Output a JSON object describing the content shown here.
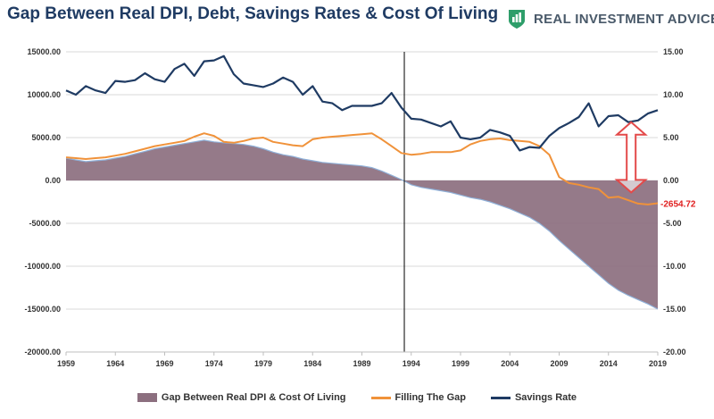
{
  "header": {
    "title": "Gap Between Real DPI, Debt, Savings Rates & Cost Of Living",
    "brand": "REAL INVESTMENT ADVICE",
    "brand_icon": "bar-chart-logo-icon"
  },
  "colors": {
    "gap_fill": "#8c6f7f",
    "gap_edge": "#8fb0d8",
    "filling_line": "#f0923a",
    "savings_line": "#1f3b63",
    "arrow": "#e34a4a",
    "last_label": "#e02020",
    "vline": "#000000",
    "grid": "#d9d9d9"
  },
  "chart_data": {
    "type": "area+line",
    "title": "Gap Between Real DPI, Debt, Savings Rates & Cost Of Living",
    "x_range": [
      1959,
      2019
    ],
    "x_ticks": [
      "1959",
      "1964",
      "1969",
      "1974",
      "1979",
      "1984",
      "1989",
      "1994",
      "1999",
      "2004",
      "2009",
      "2014",
      "2019"
    ],
    "y_left": {
      "range": [
        -20000,
        15000
      ],
      "ticks": [
        "15000.00",
        "10000.00",
        "5000.00",
        "0.00",
        "-5000.00",
        "-10000.00",
        "-15000.00",
        "-20000.00"
      ]
    },
    "y_right": {
      "range": [
        -20,
        15
      ],
      "ticks": [
        "15.00",
        "10.00",
        "5.00",
        "0.00",
        "-5.00",
        "-10.00",
        "-15.00",
        "-20.00"
      ]
    },
    "vertical_marker_year": 1993.3,
    "last_value_label": "-2654.72",
    "annotation": "double-headed arrow between Savings Rate and Filling The Gap near 2016",
    "series": [
      {
        "name": "Gap Between Real DPI & Cost Of Living",
        "kind": "area",
        "axis": "left",
        "points": [
          [
            1959,
            2600
          ],
          [
            1960,
            2400
          ],
          [
            1961,
            2200
          ],
          [
            1962,
            2300
          ],
          [
            1963,
            2400
          ],
          [
            1964,
            2600
          ],
          [
            1965,
            2800
          ],
          [
            1966,
            3100
          ],
          [
            1967,
            3400
          ],
          [
            1968,
            3700
          ],
          [
            1969,
            3900
          ],
          [
            1970,
            4100
          ],
          [
            1971,
            4300
          ],
          [
            1972,
            4500
          ],
          [
            1973,
            4700
          ],
          [
            1974,
            4500
          ],
          [
            1975,
            4400
          ],
          [
            1976,
            4300
          ],
          [
            1977,
            4200
          ],
          [
            1978,
            4000
          ],
          [
            1979,
            3700
          ],
          [
            1980,
            3300
          ],
          [
            1981,
            3000
          ],
          [
            1982,
            2800
          ],
          [
            1983,
            2500
          ],
          [
            1984,
            2300
          ],
          [
            1985,
            2100
          ],
          [
            1986,
            2000
          ],
          [
            1987,
            1900
          ],
          [
            1988,
            1800
          ],
          [
            1989,
            1700
          ],
          [
            1990,
            1500
          ],
          [
            1991,
            1100
          ],
          [
            1992,
            600
          ],
          [
            1993,
            100
          ],
          [
            1994,
            -500
          ],
          [
            1995,
            -800
          ],
          [
            1996,
            -1000
          ],
          [
            1997,
            -1200
          ],
          [
            1998,
            -1400
          ],
          [
            1999,
            -1700
          ],
          [
            2000,
            -2000
          ],
          [
            2001,
            -2200
          ],
          [
            2002,
            -2500
          ],
          [
            2003,
            -2900
          ],
          [
            2004,
            -3300
          ],
          [
            2005,
            -3800
          ],
          [
            2006,
            -4300
          ],
          [
            2007,
            -5000
          ],
          [
            2008,
            -5900
          ],
          [
            2009,
            -7000
          ],
          [
            2010,
            -8000
          ],
          [
            2011,
            -9000
          ],
          [
            2012,
            -10000
          ],
          [
            2013,
            -11000
          ],
          [
            2014,
            -12000
          ],
          [
            2015,
            -12800
          ],
          [
            2016,
            -13400
          ],
          [
            2017,
            -13900
          ],
          [
            2018,
            -14400
          ],
          [
            2019,
            -15000
          ]
        ]
      },
      {
        "name": "Filling The Gap",
        "kind": "line",
        "axis": "left",
        "points": [
          [
            1959,
            2700
          ],
          [
            1960,
            2600
          ],
          [
            1961,
            2500
          ],
          [
            1962,
            2600
          ],
          [
            1963,
            2700
          ],
          [
            1964,
            2900
          ],
          [
            1965,
            3100
          ],
          [
            1966,
            3400
          ],
          [
            1967,
            3700
          ],
          [
            1968,
            4000
          ],
          [
            1969,
            4200
          ],
          [
            1970,
            4400
          ],
          [
            1971,
            4600
          ],
          [
            1972,
            5100
          ],
          [
            1973,
            5500
          ],
          [
            1974,
            5200
          ],
          [
            1975,
            4500
          ],
          [
            1976,
            4400
          ],
          [
            1977,
            4600
          ],
          [
            1978,
            4900
          ],
          [
            1979,
            5000
          ],
          [
            1980,
            4500
          ],
          [
            1981,
            4300
          ],
          [
            1982,
            4100
          ],
          [
            1983,
            4000
          ],
          [
            1984,
            4800
          ],
          [
            1985,
            5000
          ],
          [
            1986,
            5100
          ],
          [
            1987,
            5200
          ],
          [
            1988,
            5300
          ],
          [
            1989,
            5400
          ],
          [
            1990,
            5500
          ],
          [
            1991,
            4800
          ],
          [
            1992,
            4000
          ],
          [
            1993,
            3200
          ],
          [
            1994,
            3000
          ],
          [
            1995,
            3100
          ],
          [
            1996,
            3300
          ],
          [
            1997,
            3300
          ],
          [
            1998,
            3300
          ],
          [
            1999,
            3500
          ],
          [
            2000,
            4200
          ],
          [
            2001,
            4600
          ],
          [
            2002,
            4800
          ],
          [
            2003,
            4900
          ],
          [
            2004,
            4700
          ],
          [
            2005,
            4600
          ],
          [
            2006,
            4500
          ],
          [
            2007,
            4000
          ],
          [
            2008,
            3000
          ],
          [
            2009,
            400
          ],
          [
            2010,
            -300
          ],
          [
            2011,
            -500
          ],
          [
            2012,
            -800
          ],
          [
            2013,
            -1000
          ],
          [
            2014,
            -2000
          ],
          [
            2015,
            -1900
          ],
          [
            2016,
            -2300
          ],
          [
            2017,
            -2700
          ],
          [
            2018,
            -2800
          ],
          [
            2019,
            -2654.72
          ]
        ]
      },
      {
        "name": "Savings Rate",
        "kind": "line",
        "axis": "right",
        "points": [
          [
            1959,
            10.5
          ],
          [
            1960,
            10.0
          ],
          [
            1961,
            11.0
          ],
          [
            1962,
            10.5
          ],
          [
            1963,
            10.2
          ],
          [
            1964,
            11.6
          ],
          [
            1965,
            11.5
          ],
          [
            1966,
            11.7
          ],
          [
            1967,
            12.5
          ],
          [
            1968,
            11.8
          ],
          [
            1969,
            11.5
          ],
          [
            1970,
            13.0
          ],
          [
            1971,
            13.6
          ],
          [
            1972,
            12.2
          ],
          [
            1973,
            13.9
          ],
          [
            1974,
            14.0
          ],
          [
            1975,
            14.5
          ],
          [
            1976,
            12.4
          ],
          [
            1977,
            11.3
          ],
          [
            1978,
            11.1
          ],
          [
            1979,
            10.9
          ],
          [
            1980,
            11.3
          ],
          [
            1981,
            12.0
          ],
          [
            1982,
            11.5
          ],
          [
            1983,
            10.0
          ],
          [
            1984,
            11.0
          ],
          [
            1985,
            9.2
          ],
          [
            1986,
            9.0
          ],
          [
            1987,
            8.2
          ],
          [
            1988,
            8.7
          ],
          [
            1989,
            8.7
          ],
          [
            1990,
            8.7
          ],
          [
            1991,
            9.0
          ],
          [
            1992,
            10.2
          ],
          [
            1993,
            8.5
          ],
          [
            1994,
            7.2
          ],
          [
            1995,
            7.1
          ],
          [
            1996,
            6.7
          ],
          [
            1997,
            6.3
          ],
          [
            1998,
            6.9
          ],
          [
            1999,
            5.0
          ],
          [
            2000,
            4.8
          ],
          [
            2001,
            5.0
          ],
          [
            2002,
            5.9
          ],
          [
            2003,
            5.6
          ],
          [
            2004,
            5.2
          ],
          [
            2005,
            3.5
          ],
          [
            2006,
            3.9
          ],
          [
            2007,
            3.8
          ],
          [
            2008,
            5.2
          ],
          [
            2009,
            6.1
          ],
          [
            2010,
            6.7
          ],
          [
            2011,
            7.4
          ],
          [
            2012,
            9.0
          ],
          [
            2013,
            6.3
          ],
          [
            2014,
            7.5
          ],
          [
            2015,
            7.6
          ],
          [
            2016,
            6.8
          ],
          [
            2017,
            7.0
          ],
          [
            2018,
            7.8
          ],
          [
            2019,
            8.2
          ]
        ]
      }
    ],
    "legend": [
      {
        "label": "Gap Between Real DPI & Cost Of Living",
        "kind": "area"
      },
      {
        "label": "Filling The Gap",
        "kind": "line"
      },
      {
        "label": "Savings Rate",
        "kind": "line"
      }
    ],
    "legend_position": "bottom-center"
  }
}
